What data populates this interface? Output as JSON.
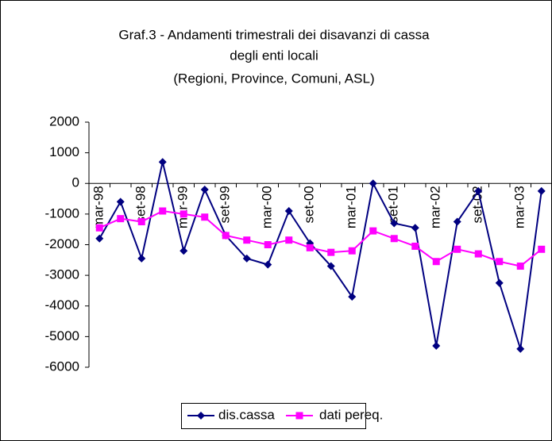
{
  "chart_data": {
    "type": "line",
    "title": [
      "Graf.3 - Andamenti trimestrali dei disavanzi di cassa",
      "degli enti locali",
      "(Regioni, Province, Comuni, ASL)"
    ],
    "categories": [
      "mar-98",
      null,
      "set-98",
      null,
      "mar-99",
      null,
      "set-99",
      null,
      "mar-00",
      null,
      "set-00",
      null,
      "mar-01",
      null,
      "set-01",
      null,
      "mar-02",
      null,
      "set-02",
      null,
      "mar-03",
      null
    ],
    "series": [
      {
        "name": "dis.cassa",
        "color": "#000080",
        "marker": "diamond",
        "values": [
          -1800,
          -600,
          -2450,
          700,
          -2200,
          -200,
          -1700,
          -2450,
          -2650,
          -900,
          -1950,
          -2700,
          -3700,
          0,
          -1300,
          -1450,
          -5300,
          -1250,
          -250,
          -3250,
          -5400,
          -250
        ]
      },
      {
        "name": "dati pereq.",
        "color": "#ff00ff",
        "marker": "square",
        "values": [
          -1450,
          -1150,
          -1250,
          -900,
          -1000,
          -1100,
          -1700,
          -1850,
          -2000,
          -1850,
          -2100,
          -2250,
          -2200,
          -1550,
          -1800,
          -2050,
          -2550,
          -2150,
          -2300,
          -2550,
          -2700,
          -2150
        ]
      }
    ],
    "ylim": [
      -6000,
      2000
    ],
    "yticks": [
      2000,
      1000,
      0,
      -1000,
      -2000,
      -3000,
      -4000,
      -5000,
      -6000
    ],
    "grid": false,
    "legend": "bottom"
  }
}
